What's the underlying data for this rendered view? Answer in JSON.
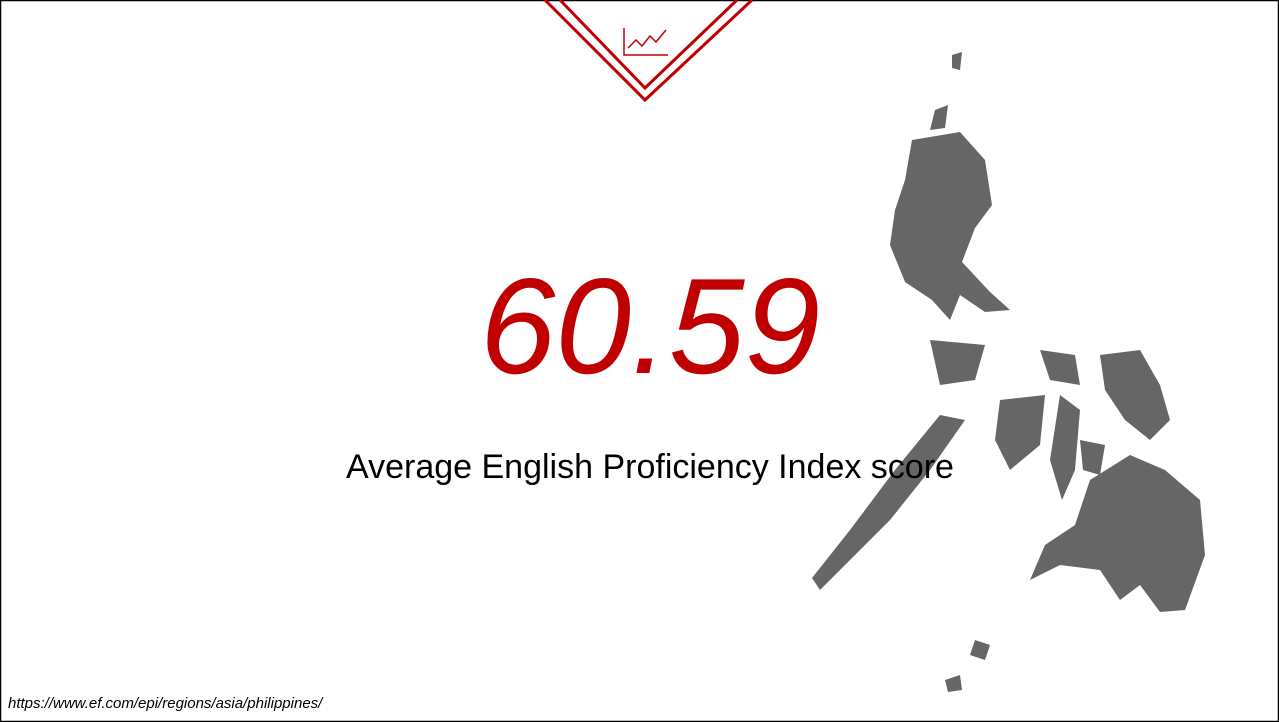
{
  "slide": {
    "score": "60.59",
    "caption": "Average English Proficiency Index score",
    "source": "https://www.ef.com/epi/regions/asia/philippines/"
  }
}
